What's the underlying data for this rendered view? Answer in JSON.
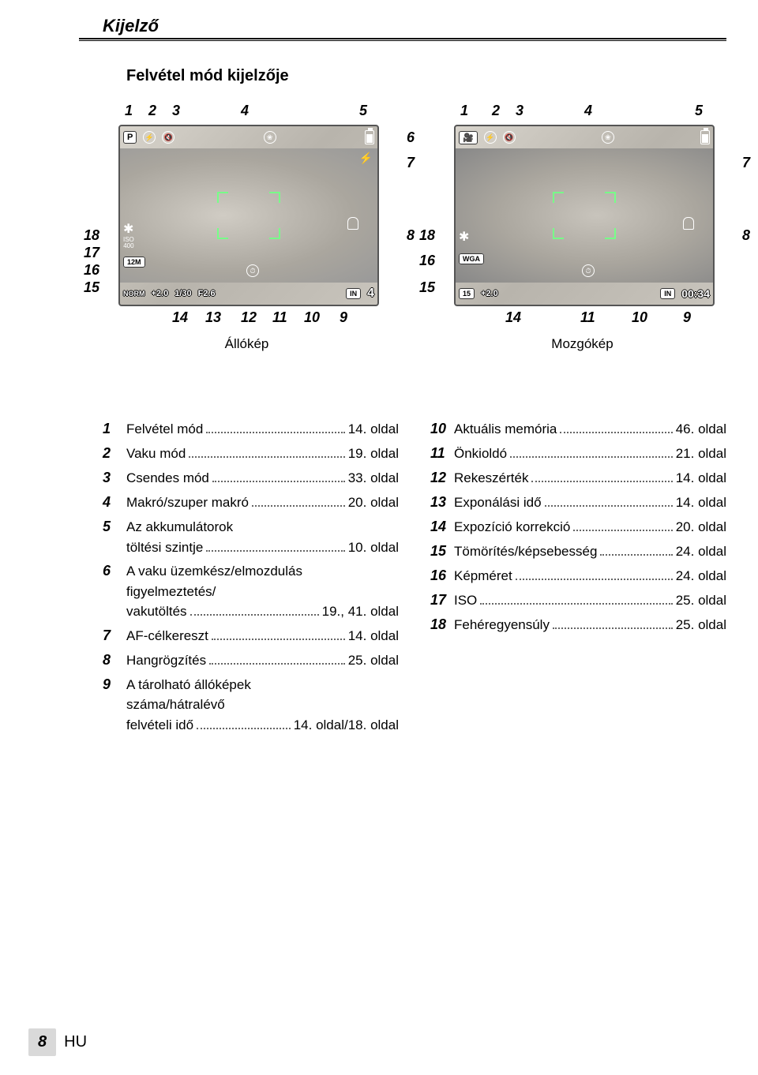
{
  "header": {
    "tab": "Kijelző"
  },
  "subtitle": "Felvétel mód kijelzője",
  "diagrams": {
    "left": {
      "caption": "Állókép",
      "top": [
        "1",
        "2",
        "3",
        "4",
        "5"
      ],
      "bottom": [
        "14",
        "13",
        "12",
        "11",
        "10",
        "9"
      ],
      "leftcol": [
        "18",
        "17",
        "16",
        "15"
      ],
      "rightcol": [
        "6",
        "7",
        "8"
      ],
      "mode_box": "P",
      "iso_label": "ISO",
      "iso_value": "400",
      "size_badge": "12M",
      "quality": "NORM",
      "ev": "+2.0",
      "shutter": "1/30",
      "aperture": "F2.6",
      "memory": "IN",
      "shots": "4"
    },
    "right": {
      "caption": "Mozgókép",
      "top": [
        "1",
        "2",
        "3",
        "4",
        "5"
      ],
      "bottom": [
        "14",
        "11",
        "10",
        "9"
      ],
      "leftcol": [
        "18",
        "16",
        "15"
      ],
      "rightcol": [
        "7",
        "8"
      ],
      "size_badge": "WGA",
      "fps_badge": "15",
      "ev": "+2.0",
      "memory": "IN",
      "time": "00:34"
    }
  },
  "legend_left": [
    {
      "n": "1",
      "label": "Felvétel mód",
      "page": "14. oldal"
    },
    {
      "n": "2",
      "label": "Vaku mód",
      "page": "19. oldal"
    },
    {
      "n": "3",
      "label": "Csendes mód",
      "page": "33. oldal"
    },
    {
      "n": "4",
      "label": "Makró/szuper makró",
      "page": "20. oldal"
    },
    {
      "n": "5",
      "label": "Az akkumulátorok",
      "line2": "töltési szintje",
      "page": "10. oldal"
    },
    {
      "n": "6",
      "label": "A vaku üzemkész/elmozdulás",
      "line2": "figyelmeztetés/",
      "line3": "vakutöltés",
      "page": "19., 41. oldal"
    },
    {
      "n": "7",
      "label": "AF-célkereszt",
      "page": "14. oldal"
    },
    {
      "n": "8",
      "label": "Hangrögzítés",
      "page": "25. oldal"
    },
    {
      "n": "9",
      "label": "A tárolható állóképek",
      "line2": "száma/hátralévő",
      "line3": "felvételi idő",
      "page": "14. oldal/18. oldal"
    }
  ],
  "legend_right": [
    {
      "n": "10",
      "label": "Aktuális memória",
      "page": "46. oldal"
    },
    {
      "n": "11",
      "label": "Önkioldó",
      "page": "21. oldal"
    },
    {
      "n": "12",
      "label": "Rekeszérték",
      "page": "14. oldal"
    },
    {
      "n": "13",
      "label": "Exponálási idő",
      "page": "14. oldal"
    },
    {
      "n": "14",
      "label": "Expozíció korrekció",
      "page": "20. oldal"
    },
    {
      "n": "15",
      "label": "Tömörítés/képsebesség",
      "page": "24. oldal"
    },
    {
      "n": "16",
      "label": "Képméret",
      "page": "24. oldal"
    },
    {
      "n": "17",
      "label": "ISO",
      "page": "25. oldal"
    },
    {
      "n": "18",
      "label": "Fehéregyensúly",
      "page": "25. oldal"
    }
  ],
  "footer": {
    "page": "8",
    "lang": "HU"
  },
  "colors": {
    "bg": "#ffffff",
    "text": "#000000",
    "af_bracket": "#77ff88",
    "footer_tab": "#d9d9d9"
  }
}
